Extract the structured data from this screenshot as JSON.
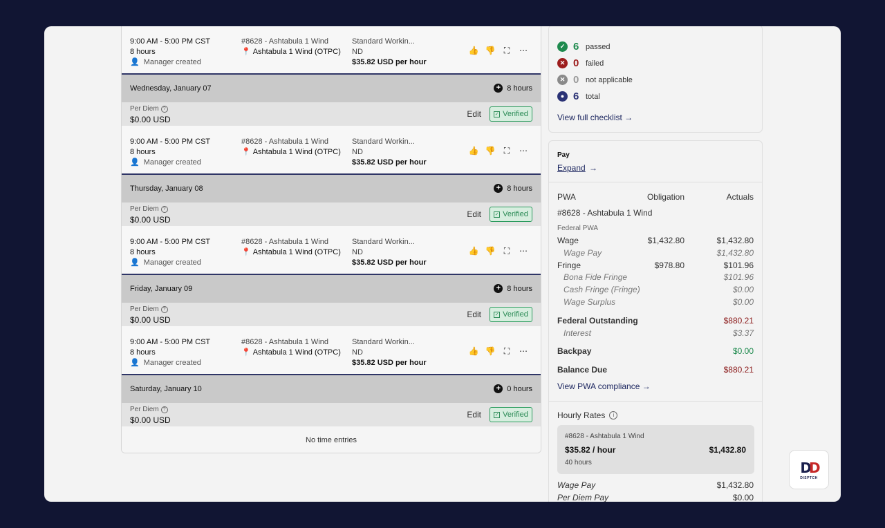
{
  "days": [
    {
      "label": "",
      "hours": "",
      "per_diem_label": "",
      "per_diem_value": "",
      "entry": {
        "time": "9:00 AM - 5:00 PM CST",
        "duration": "8 hours",
        "source": "Manager created",
        "project": "#8628 - Ashtabula 1 Wind",
        "location": "Ashtabula 1 Wind (OTPC)",
        "classification": "Standard Workin...",
        "state": "ND",
        "rate": "$35.82 USD per hour"
      }
    },
    {
      "label": "Wednesday, January 07",
      "hours": "8 hours",
      "per_diem_label": "Per Diem",
      "per_diem_value": "$0.00 USD",
      "entry": {
        "time": "9:00 AM - 5:00 PM CST",
        "duration": "8 hours",
        "source": "Manager created",
        "project": "#8628 - Ashtabula 1 Wind",
        "location": "Ashtabula 1 Wind (OTPC)",
        "classification": "Standard Workin...",
        "state": "ND",
        "rate": "$35.82 USD per hour"
      }
    },
    {
      "label": "Thursday, January 08",
      "hours": "8 hours",
      "per_diem_label": "Per Diem",
      "per_diem_value": "$0.00 USD",
      "entry": {
        "time": "9:00 AM - 5:00 PM CST",
        "duration": "8 hours",
        "source": "Manager created",
        "project": "#8628 - Ashtabula 1 Wind",
        "location": "Ashtabula 1 Wind (OTPC)",
        "classification": "Standard Workin...",
        "state": "ND",
        "rate": "$35.82 USD per hour"
      }
    },
    {
      "label": "Friday, January 09",
      "hours": "8 hours",
      "per_diem_label": "Per Diem",
      "per_diem_value": "$0.00 USD",
      "entry": {
        "time": "9:00 AM - 5:00 PM CST",
        "duration": "8 hours",
        "source": "Manager created",
        "project": "#8628 - Ashtabula 1 Wind",
        "location": "Ashtabula 1 Wind (OTPC)",
        "classification": "Standard Workin...",
        "state": "ND",
        "rate": "$35.82 USD per hour"
      }
    },
    {
      "label": "Saturday, January 10",
      "hours": "0 hours",
      "per_diem_label": "Per Diem",
      "per_diem_value": "$0.00 USD",
      "entry": null
    }
  ],
  "edit_label": "Edit",
  "verified_label": "Verified",
  "no_entries": "No time entries",
  "checklist": {
    "passed_count": "6",
    "passed_label": "passed",
    "failed_count": "0",
    "failed_label": "failed",
    "na_count": "0",
    "na_label": "not applicable",
    "total_count": "6",
    "total_label": "total",
    "view_link": "View full checklist",
    "colors": {
      "passed": "#1e8a4e",
      "failed": "#9c1c1c",
      "na": "#8a8a8a",
      "total": "#2a3275"
    }
  },
  "pay": {
    "title": "Pay",
    "expand": "Expand",
    "col_pwa": "PWA",
    "col_obligation": "Obligation",
    "col_actuals": "Actuals",
    "project": "#8628 - Ashtabula 1 Wind",
    "federal_pwa": "Federal PWA",
    "wage_label": "Wage",
    "wage_obligation": "$1,432.80",
    "wage_actuals": "$1,432.80",
    "wage_pay_label": "Wage Pay",
    "wage_pay_value": "$1,432.80",
    "fringe_label": "Fringe",
    "fringe_obligation": "$978.80",
    "fringe_actuals": "$101.96",
    "bona_fide_label": "Bona Fide Fringe",
    "bona_fide_value": "$101.96",
    "cash_fringe_label": "Cash Fringe (Fringe)",
    "cash_fringe_value": "$0.00",
    "wage_surplus_label": "Wage Surplus",
    "wage_surplus_value": "$0.00",
    "federal_outstanding_label": "Federal Outstanding",
    "federal_outstanding_value": "$880.21",
    "interest_label": "Interest",
    "interest_value": "$3.37",
    "backpay_label": "Backpay",
    "backpay_value": "$0.00",
    "balance_due_label": "Balance Due",
    "balance_due_value": "$880.21",
    "view_pwa": "View PWA compliance",
    "hourly_rates_title": "Hourly Rates",
    "hr_project": "#8628 - Ashtabula 1 Wind",
    "hr_rate": "$35.82 / hour",
    "hr_total": "$1,432.80",
    "hr_hours": "40 hours",
    "footer_wage_pay_label": "Wage Pay",
    "footer_wage_pay_value": "$1,432.80",
    "footer_per_diem_label": "Per Diem Pay",
    "footer_per_diem_value": "$0.00"
  },
  "logo_text": "DISPTCH"
}
